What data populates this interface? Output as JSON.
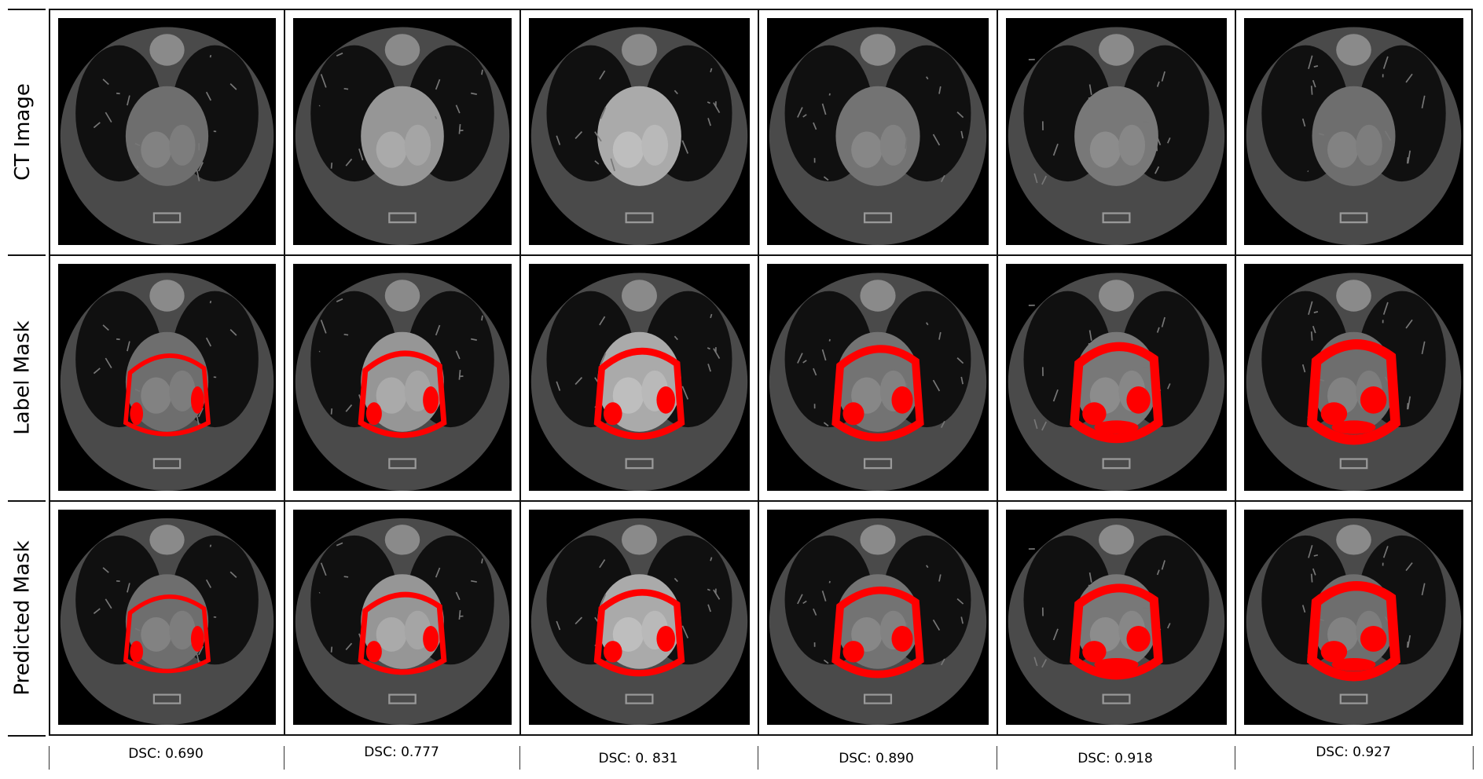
{
  "rows": [
    {
      "label": "CT Image",
      "mask": false
    },
    {
      "label": "Label Mask",
      "mask": true
    },
    {
      "label": "Predicted Mask",
      "mask": true
    }
  ],
  "columns": [
    {
      "dsc": "DSC: 0.690"
    },
    {
      "dsc": "DSC: 0.777"
    },
    {
      "dsc": "DSC: 0. 831"
    },
    {
      "dsc": "DSC: 0.890"
    },
    {
      "dsc": "DSC: 0.918"
    },
    {
      "dsc": "DSC: 0.927"
    }
  ],
  "colors": {
    "mask": "#ff0000",
    "background": "#000000",
    "border": "#111111"
  }
}
